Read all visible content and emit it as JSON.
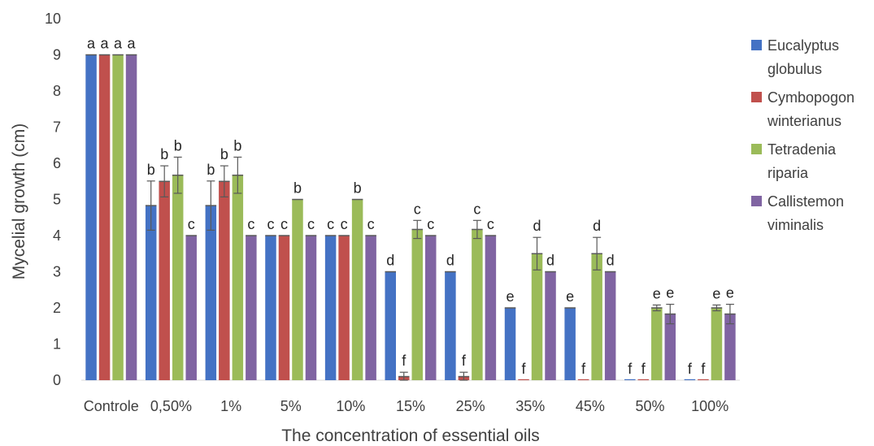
{
  "chart_data": {
    "type": "bar",
    "xlabel": "The concentration of essential oils",
    "ylabel": "Mycelial  growth (cm)",
    "ylim": [
      0,
      10
    ],
    "yticks": [
      "0",
      "1",
      "2",
      "3",
      "4",
      "5",
      "6",
      "7",
      "8",
      "9",
      "10"
    ],
    "grid": false,
    "legend_position": "right",
    "categories": [
      "Controle",
      "0,50%",
      "1%",
      "5%",
      "10%",
      "15%",
      "25%",
      "35%",
      "45%",
      "50%",
      "100%"
    ],
    "series": [
      {
        "name": "Eucalyptus globulus",
        "legend_lines": [
          "Eucalyptus",
          "globulus"
        ],
        "color": "#4472C4",
        "values": [
          9,
          4.83,
          4.83,
          4,
          4,
          3,
          3,
          2,
          2,
          0,
          0
        ],
        "errors": [
          0,
          0.68,
          0.68,
          0,
          0,
          0,
          0,
          0,
          0,
          0,
          0
        ],
        "letters": [
          "a",
          "b",
          "b",
          "c",
          "c",
          "d",
          "d",
          "e",
          "e",
          "f",
          "f"
        ]
      },
      {
        "name": "Cymbopogon winterianus",
        "legend_lines": [
          "Cymbopogon",
          "winterianus"
        ],
        "color": "#C0504D",
        "values": [
          9,
          5.5,
          5.5,
          4,
          4,
          0.1,
          0.1,
          0,
          0,
          0,
          0
        ],
        "errors": [
          0,
          0.43,
          0.43,
          0,
          0,
          0.12,
          0.12,
          0,
          0,
          0,
          0
        ],
        "letters": [
          "a",
          "b",
          "b",
          "c",
          "c",
          "f",
          "f",
          "f",
          "f",
          "f",
          "f"
        ]
      },
      {
        "name": "Tetradenia riparia",
        "legend_lines": [
          "Tetradenia",
          "riparia"
        ],
        "color": "#9BBB59",
        "values": [
          9,
          5.67,
          5.67,
          5,
          5,
          4.17,
          4.17,
          3.5,
          3.5,
          2,
          2
        ],
        "errors": [
          0,
          0.5,
          0.5,
          0,
          0,
          0.25,
          0.25,
          0.45,
          0.45,
          0.08,
          0.08
        ],
        "letters": [
          "a",
          "b",
          "b",
          "b",
          "b",
          "c",
          "c",
          "d",
          "d",
          "e",
          "e"
        ]
      },
      {
        "name": "Callistemon viminalis",
        "legend_lines": [
          "Callistemon",
          "viminalis"
        ],
        "color": "#8064A2",
        "values": [
          9,
          4,
          4,
          4,
          4,
          4,
          4,
          3,
          3,
          1.83,
          1.83
        ],
        "errors": [
          0,
          0,
          0,
          0,
          0,
          0,
          0,
          0,
          0,
          0.27,
          0.27
        ],
        "letters": [
          "a",
          "c",
          "c",
          "c",
          "c",
          "c",
          "c",
          "d",
          "d",
          "e",
          "e"
        ]
      }
    ]
  }
}
